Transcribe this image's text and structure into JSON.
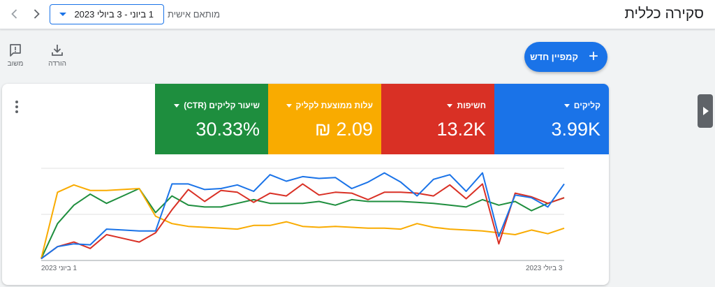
{
  "header": {
    "title": "סקירה כללית",
    "date_label": "מותאם אישית",
    "date_value": "1 ביוני - 3 ביולי 2023",
    "icons": {
      "back": "chevron-left-icon",
      "forward": "chevron-right-icon"
    }
  },
  "toolbar": {
    "download_label": "הורדה",
    "feedback_label": "משוב",
    "new_campaign_label": "קמפיין חדש"
  },
  "metrics": [
    {
      "label": "קליקים",
      "value": "3.99K",
      "color": "#1a73e8"
    },
    {
      "label": "חשיפות",
      "value": "13.2K",
      "color": "#d93025"
    },
    {
      "label": "עלות ממוצעת לקליק",
      "value": "₪ 2.09",
      "color": "#f9ab00"
    },
    {
      "label": "שיעור קליקים (CTR)",
      "value": "30.33%",
      "color": "#1e8e3e"
    }
  ],
  "chart_data": {
    "type": "line",
    "x_start_label": "1 ביוני 2023",
    "x_end_label": "3 ביולי 2023",
    "grid": true,
    "ylim": [
      0,
      100
    ],
    "series": [
      {
        "name": "קליקים",
        "color": "#1a73e8",
        "values": [
          2,
          15,
          18,
          17,
          34,
          33,
          32,
          32,
          83,
          83,
          77,
          78,
          82,
          75,
          93,
          86,
          91,
          89,
          90,
          78,
          85,
          95,
          85,
          70,
          88,
          93,
          75,
          95,
          26,
          71,
          68,
          58,
          83
        ]
      },
      {
        "name": "חשיפות",
        "color": "#d93025",
        "values": [
          2,
          15,
          20,
          13,
          28,
          24,
          20,
          30,
          55,
          77,
          64,
          76,
          74,
          63,
          73,
          70,
          83,
          71,
          74,
          73,
          66,
          74,
          74,
          73,
          70,
          82,
          67,
          83,
          18,
          73,
          69,
          62,
          68
        ]
      },
      {
        "name": "עלות ממוצעת לקליק",
        "color": "#f9ab00",
        "values": [
          2,
          74,
          82,
          76,
          76,
          77,
          78,
          48,
          40,
          37,
          36,
          35,
          34,
          38,
          38,
          42,
          37,
          36,
          37,
          36,
          35,
          35,
          34,
          40,
          36,
          34,
          33,
          32,
          30,
          28,
          33,
          29,
          35
        ]
      },
      {
        "name": "שיעור קליקים (CTR)",
        "color": "#1e8e3e",
        "values": [
          2,
          40,
          60,
          72,
          62,
          70,
          78,
          52,
          70,
          60,
          58,
          58,
          62,
          66,
          62,
          62,
          62,
          64,
          60,
          66,
          64,
          64,
          64,
          63,
          62,
          60,
          58,
          66,
          60,
          64,
          54,
          62,
          68
        ]
      }
    ]
  }
}
